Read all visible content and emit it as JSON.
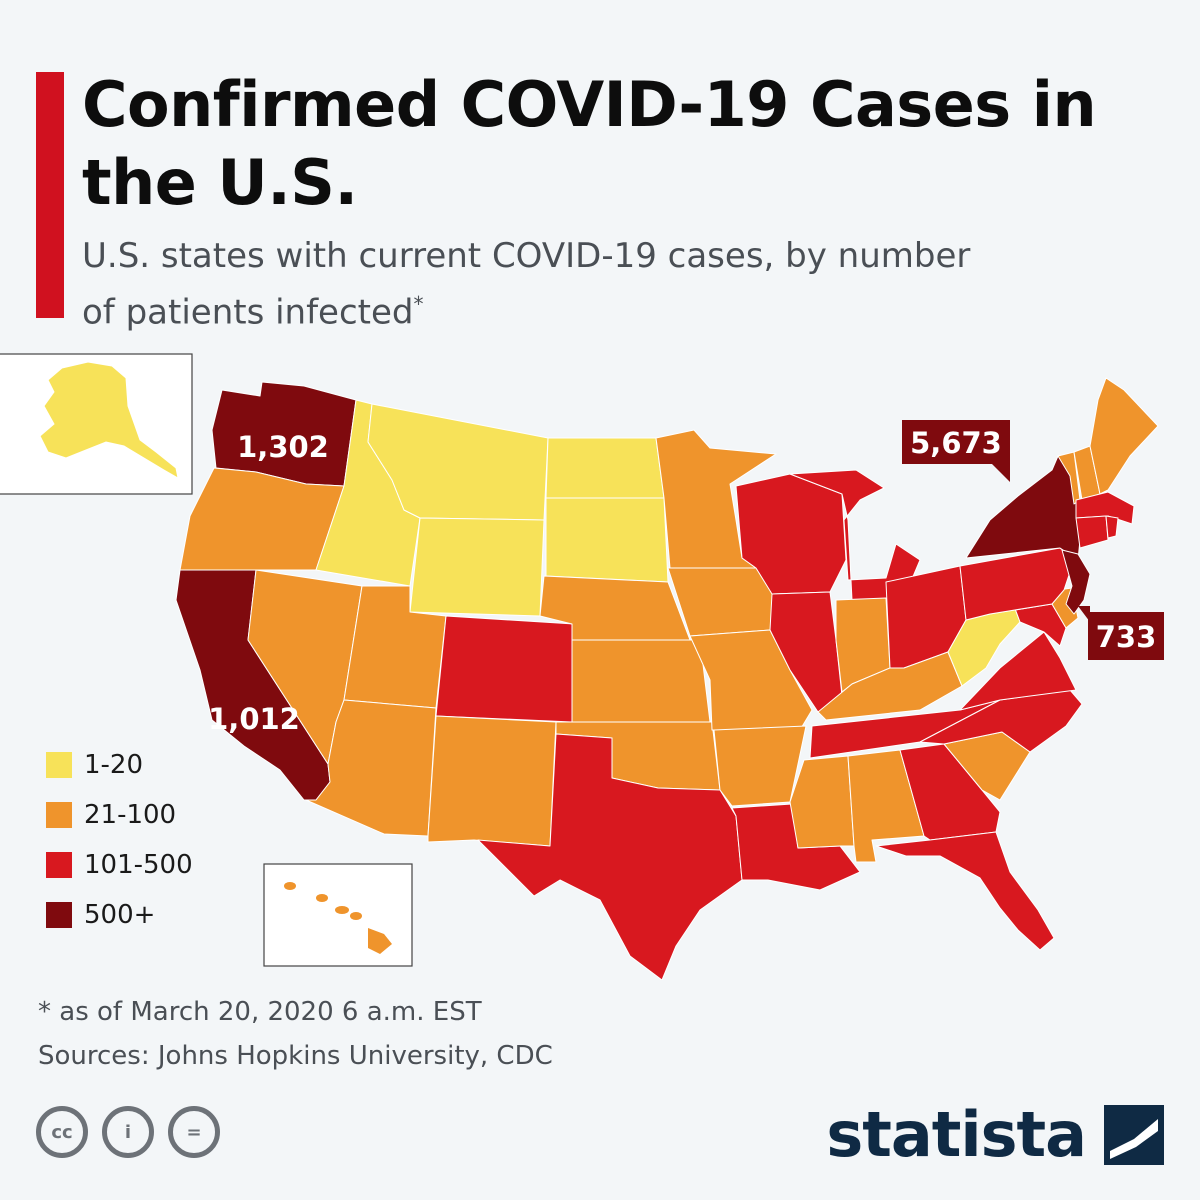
{
  "header": {
    "title": "Confirmed COVID-19 Cases in the U.S.",
    "subtitle": "U.S. states with current COVID-19 cases, by number of patients infected",
    "subtitle_mark": "*"
  },
  "legend": {
    "items": [
      {
        "label": "1-20",
        "color": "#f7e259"
      },
      {
        "label": "21-100",
        "color": "#ef942c"
      },
      {
        "label": "101-500",
        "color": "#d8181f"
      },
      {
        "label": "500+",
        "color": "#7f0a0e"
      }
    ]
  },
  "map_labels": {
    "washington": "1,302",
    "california": "1,012",
    "new_york": "5,673",
    "new_jersey": "733"
  },
  "states": {
    "WA": "500+",
    "CA": "500+",
    "NY": "500+",
    "NJ": "500+",
    "MT": "1-20",
    "ID": "1-20",
    "WY": "1-20",
    "ND": "1-20",
    "SD": "1-20",
    "WV": "1-20",
    "AK": "1-20",
    "OR": "21-100",
    "NV": "21-100",
    "UT": "21-100",
    "AZ": "21-100",
    "NM": "21-100",
    "NE": "21-100",
    "KS": "21-100",
    "OK": "21-100",
    "MN": "21-100",
    "IA": "21-100",
    "MO": "21-100",
    "AR": "21-100",
    "MS": "21-100",
    "AL": "21-100",
    "KY": "21-100",
    "IN": "21-100",
    "SC": "21-100",
    "ME": "21-100",
    "NH": "21-100",
    "VT": "21-100",
    "DE": "21-100",
    "HI": "21-100",
    "CO": "101-500",
    "TX": "101-500",
    "LA": "101-500",
    "WI": "101-500",
    "IL": "101-500",
    "MI": "101-500",
    "OH": "101-500",
    "TN": "101-500",
    "GA": "101-500",
    "FL": "101-500",
    "NC": "101-500",
    "VA": "101-500",
    "PA": "101-500",
    "MD": "101-500",
    "CT": "101-500",
    "MA": "101-500",
    "RI": "101-500"
  },
  "footnote": {
    "asof": "* as of March 20, 2020 6 a.m. EST",
    "sources": "Sources: Johns Hopkins University, CDC"
  },
  "license_icons": [
    {
      "name": "cc-icon",
      "text": "cc"
    },
    {
      "name": "attribution-icon",
      "text": "i"
    },
    {
      "name": "no-derivatives-icon",
      "text": "="
    }
  ],
  "brand": {
    "name": "statista"
  }
}
